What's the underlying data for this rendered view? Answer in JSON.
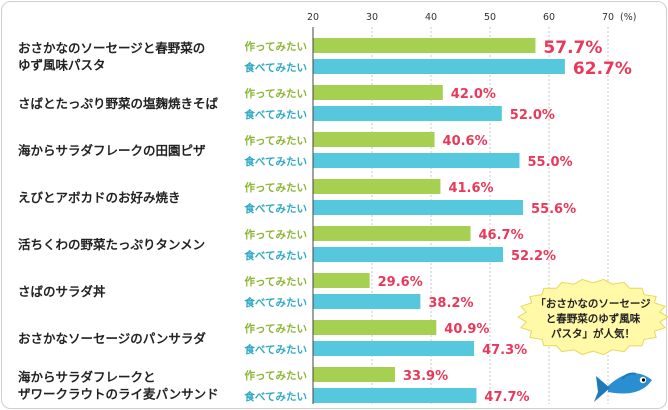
{
  "chart_data": {
    "type": "bar",
    "orientation": "horizontal",
    "title": "",
    "xlabel": "",
    "ylabel": "",
    "x_ticks": [
      20,
      30,
      40,
      50,
      60,
      70
    ],
    "x_unit": "(%)",
    "xlim": [
      20,
      70
    ],
    "categories": [
      [
        "おさかなのソーセージと春野菜の",
        "ゆず風味パスタ"
      ],
      [
        "さばとたっぷり野菜の塩麹焼きそば"
      ],
      [
        "海からサラダフレークの田園ピザ"
      ],
      [
        "えびとアボカドのお好み焼き"
      ],
      [
        "活ちくわの野菜たっぷりタンメン"
      ],
      [
        "さばのサラダ丼"
      ],
      [
        "おさかなソーセージのパンサラダ"
      ],
      [
        "海からサラダフレークと",
        "ザワークラウトのライ麦パンサンド"
      ]
    ],
    "series": [
      {
        "name": "作ってみたい",
        "color": "#a6d051",
        "values": [
          57.7,
          42.0,
          40.6,
          41.6,
          46.7,
          29.6,
          40.9,
          33.9
        ],
        "value_labels": [
          "57.7%",
          "42.0%",
          "40.6%",
          "41.6%",
          "46.7%",
          "29.6%",
          "40.9%",
          "33.9%"
        ]
      },
      {
        "name": "食べてみたい",
        "color": "#55c8de",
        "values": [
          62.7,
          52.0,
          55.0,
          55.6,
          52.2,
          38.2,
          47.3,
          47.7
        ],
        "value_labels": [
          "62.7%",
          "52.0%",
          "55.0%",
          "55.6%",
          "52.2%",
          "38.2%",
          "47.3%",
          "47.7%"
        ]
      }
    ],
    "highlight_category_index": 0,
    "grid": true,
    "callout": {
      "lines": [
        "「おさかなのソーセージ",
        "と春野菜のゆず風味",
        "パスタ」が人気！"
      ],
      "fill": "#fff9a8",
      "icon": "fish-icon"
    }
  }
}
